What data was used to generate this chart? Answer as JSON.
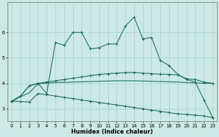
{
  "xlabel": "Humidex (Indice chaleur)",
  "x": [
    0,
    1,
    2,
    3,
    4,
    5,
    6,
    7,
    8,
    9,
    10,
    11,
    12,
    13,
    14,
    15,
    16,
    17,
    18,
    19,
    20,
    21,
    22,
    23
  ],
  "line1": [
    3.3,
    3.5,
    3.9,
    4.0,
    3.6,
    5.6,
    5.5,
    6.0,
    6.0,
    5.35,
    5.4,
    5.55,
    5.55,
    6.25,
    6.6,
    5.75,
    5.8,
    4.9,
    4.7,
    4.35,
    4.15,
    4.05,
    3.35,
    2.65
  ],
  "line2": [
    3.3,
    3.5,
    3.9,
    4.0,
    4.05,
    4.1,
    4.15,
    4.2,
    4.25,
    4.3,
    4.35,
    4.38,
    4.4,
    4.42,
    4.43,
    4.4,
    4.38,
    4.36,
    4.35,
    4.33,
    4.18,
    4.15,
    4.05,
    4.0
  ],
  "line3": [
    3.3,
    3.47,
    3.63,
    3.98,
    4.01,
    4.03,
    4.04,
    4.05,
    4.06,
    4.07,
    4.08,
    4.09,
    4.1,
    4.1,
    4.1,
    4.09,
    4.08,
    4.07,
    4.06,
    4.05,
    4.03,
    4.02,
    4.0,
    4.0
  ],
  "line4": [
    3.3,
    3.28,
    3.26,
    3.6,
    3.55,
    3.5,
    3.45,
    3.4,
    3.35,
    3.3,
    3.25,
    3.2,
    3.15,
    3.1,
    3.05,
    3.0,
    2.95,
    2.9,
    2.85,
    2.8,
    2.78,
    2.75,
    2.72,
    2.65
  ],
  "bg_color": "#cce9e5",
  "grid_color": "#aad4d0",
  "line_color": "#1a6b60",
  "ylim": [
    2.5,
    7.2
  ],
  "xlim": [
    -0.5,
    23.5
  ],
  "yticks": [
    3,
    4,
    5,
    6
  ],
  "ytick_labels": [
    "3",
    "4",
    "5",
    "6"
  ],
  "xticks": [
    0,
    1,
    2,
    3,
    4,
    5,
    6,
    7,
    8,
    9,
    10,
    11,
    12,
    13,
    14,
    15,
    16,
    17,
    18,
    19,
    20,
    21,
    22,
    23
  ],
  "marker_size": 3,
  "line_width": 0.8,
  "xlabel_fontsize": 6,
  "tick_fontsize": 5,
  "xlabel_fontweight": "bold"
}
